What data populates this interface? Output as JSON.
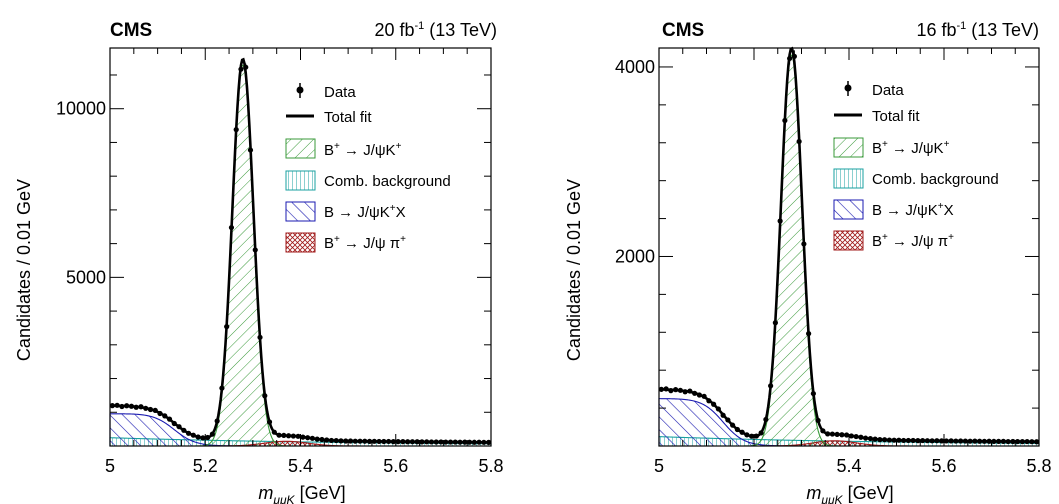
{
  "colors": {
    "data": "#000000",
    "fit": "#000000",
    "signal": "#3a9a3a",
    "comb": "#1aa0a0",
    "partial": "#1a1ab0",
    "pion": "#a01a1a"
  },
  "labels": {
    "experiment": "CMS",
    "xlabel_main": "m",
    "xlabel_sub": "μμK",
    "xlabel_unit": " [GeV]",
    "ylabel": "Candidates / 0.01 GeV",
    "legend": {
      "data": "Data",
      "fit": "Total fit",
      "signal_a": "B",
      "signal_sup": "+",
      "signal_b": " → J/ψK",
      "signal_sup2": "+",
      "comb": "Comb. background",
      "partial_a": "B",
      "partial_b": "   → J/ψK",
      "partial_sup": "+",
      "partial_c": "X",
      "pion_a": "B",
      "pion_sup": "+",
      "pion_b": " → J/ψ π",
      "pion_sup2": "+"
    }
  },
  "chart_data": [
    {
      "type": "line",
      "lumi": "20 fb",
      "lumi_sup": "-1",
      "energy": " (13 TeV)",
      "xlabel": "mμμK [GeV]",
      "ylabel": "Candidates / 0.01 GeV",
      "xlim": [
        5.0,
        5.8
      ],
      "ylim": [
        0,
        11800
      ],
      "xticks": [
        "5",
        "5.2",
        "5.4",
        "5.6",
        "5.8"
      ],
      "yticks": [
        5000,
        10000
      ],
      "ytick_labels": [
        "5000",
        "10000"
      ],
      "peak": 11300,
      "plateau": 1300,
      "partial_level": 950,
      "comb_level": 250,
      "tail_level": 70,
      "pion_peak": 140,
      "legend": [
        "Data",
        "Total fit",
        "B+ → J/ψK+",
        "Comb. background",
        "B → J/ψK+X",
        "B+ → J/ψπ+"
      ]
    },
    {
      "type": "line",
      "lumi": "16 fb",
      "lumi_sup": "-1",
      "energy": " (13 TeV)",
      "xlabel": "mμμK [GeV]",
      "ylabel": "Candidates / 0.01 GeV",
      "xlim": [
        5.0,
        5.8
      ],
      "ylim": [
        0,
        4200
      ],
      "xticks": [
        "5",
        "5.2",
        "5.4",
        "5.6",
        "5.8"
      ],
      "yticks": [
        2000,
        4000
      ],
      "ytick_labels": [
        "2000",
        "4000"
      ],
      "peak": 4130,
      "plateau": 620,
      "partial_level": 500,
      "comb_level": 100,
      "tail_level": 30,
      "pion_peak": 55,
      "legend": [
        "Data",
        "Total fit",
        "B+ → J/ψK+",
        "Comb. background",
        "B → J/ψK+X",
        "B+ → J/ψπ+"
      ]
    }
  ]
}
